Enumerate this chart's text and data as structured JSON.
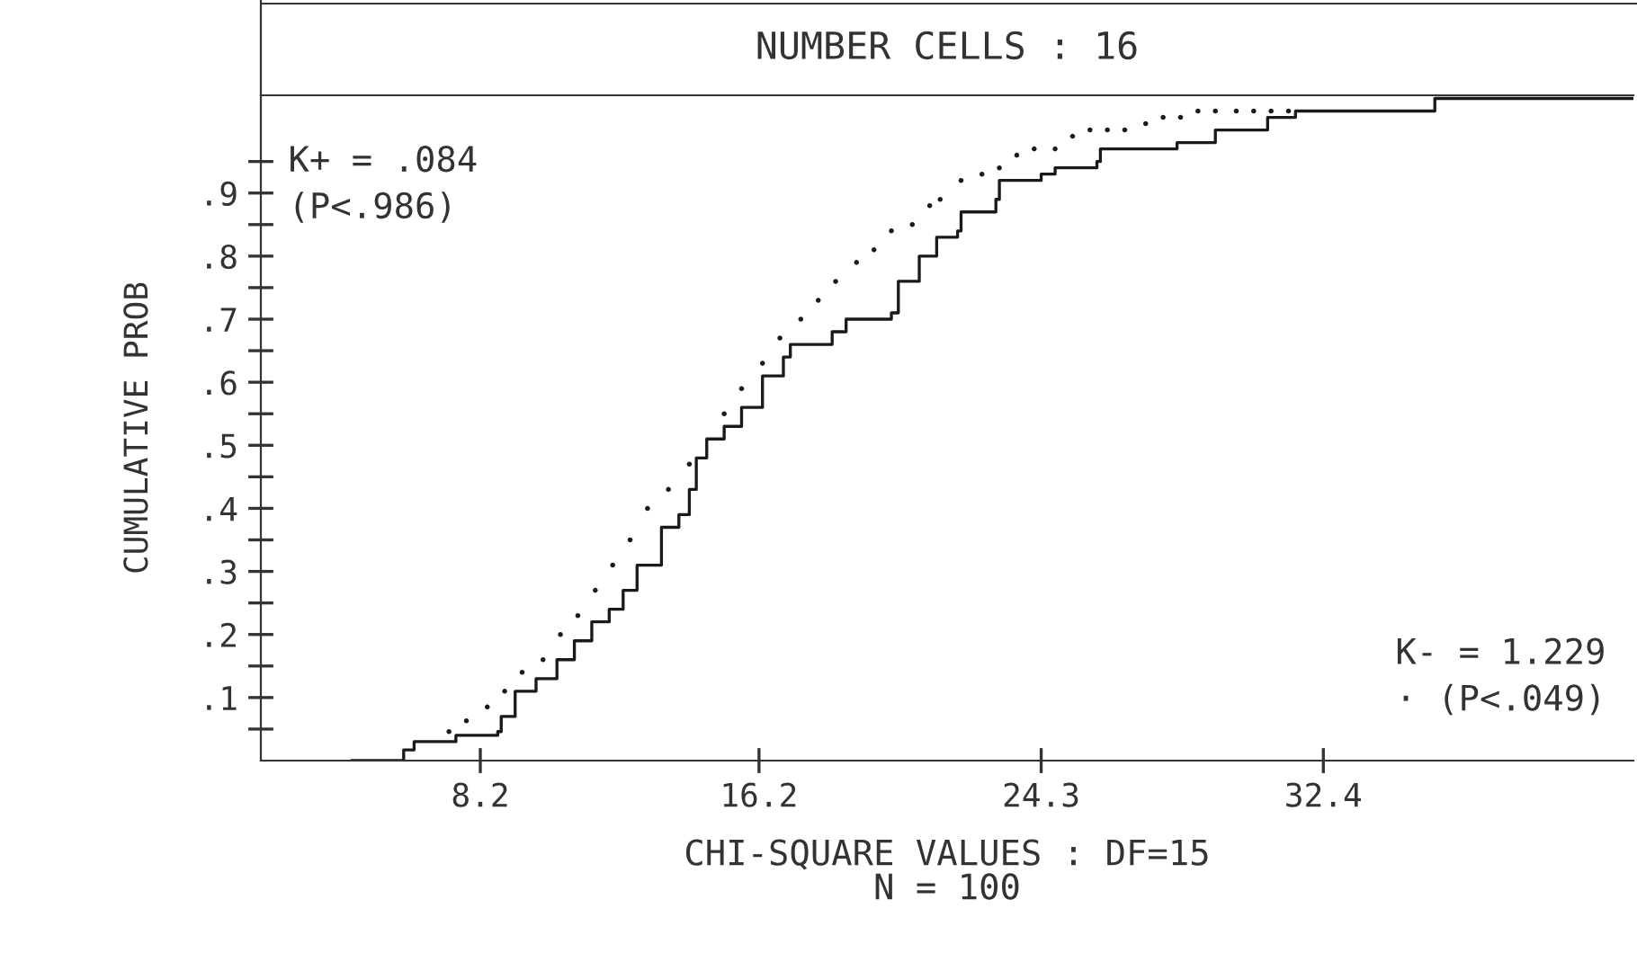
{
  "chart_data": {
    "type": "step",
    "title": "NUMBER CELLS : 16",
    "xlabel": "CHI-SQUARE VALUES : DF=15\nN = 100",
    "ylabel": "CUMULATIVE PROB",
    "annotations": [
      "K+ = .084",
      "(P<.986)",
      "K- = 1.229",
      "· (P<.049)"
    ],
    "xlim": [
      1.9,
      41.3
    ],
    "xticks": [
      8.2,
      16.2,
      24.3,
      32.4
    ],
    "ylim": [
      0,
      1.055
    ],
    "yticks": [
      {
        "value": 0.05,
        "label": null
      },
      {
        "value": 0.1,
        "label": ".1"
      },
      {
        "value": 0.15,
        "label": null
      },
      {
        "value": 0.2,
        "label": ".2"
      },
      {
        "value": 0.25,
        "label": null
      },
      {
        "value": 0.3,
        "label": ".3"
      },
      {
        "value": 0.35,
        "label": null
      },
      {
        "value": 0.4,
        "label": ".4"
      },
      {
        "value": 0.45,
        "label": null
      },
      {
        "value": 0.5,
        "label": ".5"
      },
      {
        "value": 0.55,
        "label": null
      },
      {
        "value": 0.6,
        "label": ".6"
      },
      {
        "value": 0.65,
        "label": null
      },
      {
        "value": 0.7,
        "label": ".7"
      },
      {
        "value": 0.75,
        "label": null
      },
      {
        "value": 0.8,
        "label": ".8"
      },
      {
        "value": 0.85,
        "label": null
      },
      {
        "value": 0.9,
        "label": ".9"
      },
      {
        "value": 0.95,
        "label": null
      }
    ],
    "grid": false,
    "legend": false,
    "series": [
      {
        "type": "step",
        "color": "#1a1a1a",
        "line_style": "solid",
        "marker": "none",
        "x": [
          4.5,
          6.0,
          6.3,
          7.5,
          8.7,
          8.8,
          9.2,
          9.8,
          10.4,
          10.9,
          11.4,
          11.9,
          12.3,
          12.7,
          13.4,
          13.9,
          14.2,
          14.4,
          14.7,
          15.2,
          15.7,
          16.3,
          16.9,
          17.1,
          18.3,
          18.7,
          20.0,
          20.2,
          20.8,
          21.3,
          21.9,
          22.0,
          23.0,
          23.1,
          24.3,
          24.7,
          25.9,
          26.0,
          28.2,
          29.3,
          30.8,
          31.6,
          35.6,
          41.3
        ],
        "values": [
          0.0,
          0.017,
          0.03,
          0.04,
          0.046,
          0.07,
          0.11,
          0.13,
          0.16,
          0.19,
          0.22,
          0.24,
          0.27,
          0.31,
          0.37,
          0.39,
          0.43,
          0.48,
          0.51,
          0.53,
          0.56,
          0.61,
          0.64,
          0.66,
          0.68,
          0.7,
          0.71,
          0.76,
          0.8,
          0.83,
          0.84,
          0.87,
          0.89,
          0.92,
          0.93,
          0.94,
          0.95,
          0.97,
          0.98,
          1.0,
          1.02,
          1.03,
          1.05,
          1.05
        ]
      },
      {
        "type": "scatter",
        "color": "#1a1a1a",
        "marker": "circle",
        "x": [
          7.3,
          7.8,
          8.4,
          8.9,
          9.4,
          10.0,
          10.5,
          11.0,
          11.5,
          12.0,
          12.5,
          13.0,
          13.6,
          14.2,
          15.2,
          15.7,
          16.3,
          16.8,
          17.4,
          17.9,
          18.4,
          19.0,
          19.5,
          20.0,
          20.6,
          21.1,
          21.4,
          22.0,
          22.6,
          23.1,
          23.6,
          24.1,
          24.7,
          25.2,
          25.7,
          26.2,
          26.7,
          27.3,
          27.8,
          28.3,
          28.8,
          29.3,
          29.9,
          30.4,
          30.9,
          31.4
        ],
        "values": [
          0.046,
          0.063,
          0.085,
          0.11,
          0.14,
          0.16,
          0.2,
          0.23,
          0.27,
          0.31,
          0.35,
          0.4,
          0.43,
          0.47,
          0.55,
          0.59,
          0.63,
          0.67,
          0.7,
          0.73,
          0.76,
          0.79,
          0.81,
          0.84,
          0.85,
          0.88,
          0.89,
          0.92,
          0.93,
          0.94,
          0.96,
          0.97,
          0.97,
          0.99,
          1.0,
          1.0,
          1.0,
          1.01,
          1.02,
          1.02,
          1.03,
          1.03,
          1.03,
          1.03,
          1.03,
          1.03
        ]
      }
    ]
  }
}
